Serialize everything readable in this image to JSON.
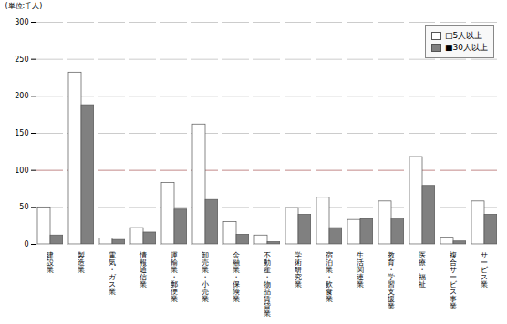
{
  "chart_data": {
    "type": "bar",
    "categories": [
      "建\n設\n業",
      "製\n造\n業",
      "電\n気\n・\nガ\nス\n業",
      "情\n報\n通\n信\n業",
      "運\n輸\n業\n・\n郵\n便\n業",
      "卸\n売\n業\n・\n小\n売\n業",
      "金\n融\n業\n・\n保\n険\n業",
      "不\n動\n産\n・\n物\n品\n賃\n貸\n業",
      "学\n術\n研\n究\n業",
      "宿\n泊\n業\n・\n飲\n食\n業",
      "生\n活\n関\n連\n業",
      "教\n育\n・\n学\n習\n支\n援\n業",
      "医\n療\n・\n福\n祉",
      "複\n合\nサ\nー\nビ\nス\n事\n業",
      "サ\nー\nビ\nス\n業"
    ],
    "series": [
      {
        "name": "□5人以上",
        "color": "#ffffff",
        "values": [
          50,
          232,
          8,
          22,
          83,
          162,
          30,
          12,
          49,
          63,
          33,
          58,
          118,
          9,
          58
        ]
      },
      {
        "name": "■30人以上",
        "color": "#808080",
        "values": [
          12,
          188,
          6,
          16,
          47,
          60,
          13,
          3,
          40,
          22,
          34,
          35,
          79,
          4,
          40
        ]
      }
    ],
    "ylabel": "(単位:千人)",
    "ylim": [
      0,
      300
    ],
    "yticks": [
      0,
      50,
      100,
      150,
      200,
      250,
      300
    ],
    "grid": true,
    "legend": "upper right",
    "hline": 100
  }
}
